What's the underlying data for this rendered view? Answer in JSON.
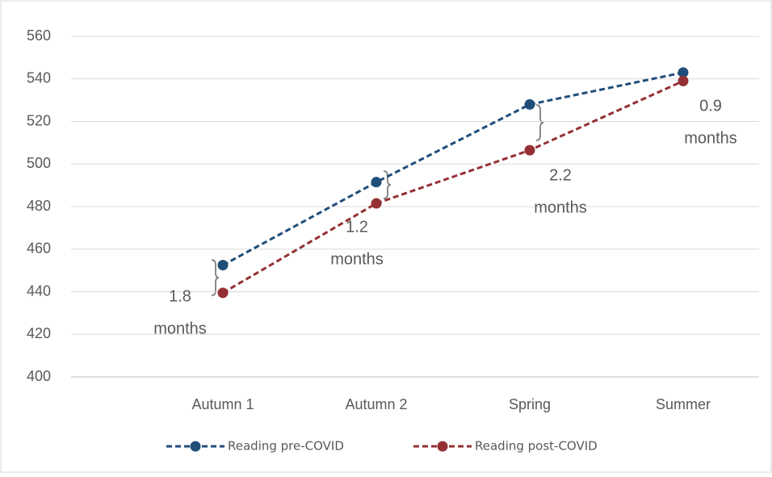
{
  "chart_data": {
    "type": "line",
    "categories": [
      "Autumn 1",
      "Autumn 2",
      "Spring",
      "Summer"
    ],
    "series": [
      {
        "name": "Reading pre-COVID",
        "color": "#1f4e79",
        "values": [
          452.5,
          491.5,
          528,
          543
        ]
      },
      {
        "name": "Reading post-COVID",
        "color": "#943034",
        "values": [
          439.5,
          481.5,
          506.5,
          539
        ]
      }
    ],
    "ylim": [
      400,
      560
    ],
    "yticks": [
      400,
      420,
      440,
      460,
      480,
      500,
      520,
      540,
      560
    ],
    "grid": true,
    "legend": "bottom",
    "annotations": [
      {
        "lines": [
          "1.8",
          "months"
        ]
      },
      {
        "lines": [
          "1.2",
          "months"
        ]
      },
      {
        "lines": [
          "2.2",
          "months"
        ]
      },
      {
        "lines": [
          "0.9",
          "months"
        ]
      }
    ]
  }
}
